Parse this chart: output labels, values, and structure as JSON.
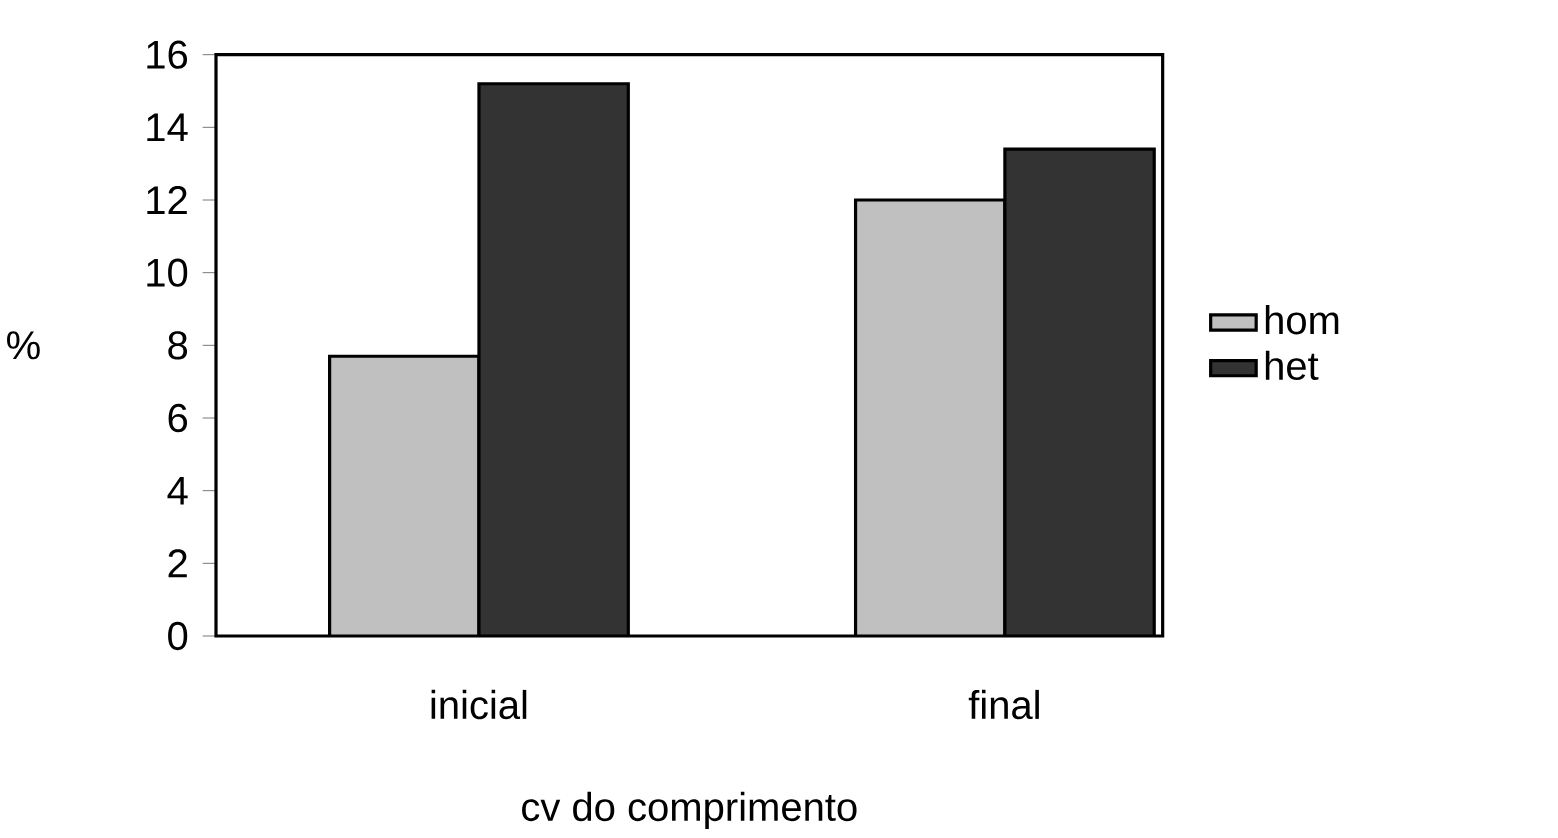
{
  "chart_data": {
    "type": "bar",
    "categories": [
      "inicial",
      "final"
    ],
    "xlabel": "cv do comprimento",
    "ylabel": "%",
    "series": [
      {
        "name": "hom",
        "color": "#c0c0c0",
        "values": [
          7.7,
          12.0
        ]
      },
      {
        "name": "het",
        "color": "#333333",
        "values": [
          15.2,
          13.4
        ]
      }
    ],
    "ylim": [
      0,
      16
    ],
    "yticks": [
      0,
      2,
      4,
      6,
      8,
      10,
      12,
      14,
      16
    ],
    "grid": false,
    "legend": "right"
  }
}
